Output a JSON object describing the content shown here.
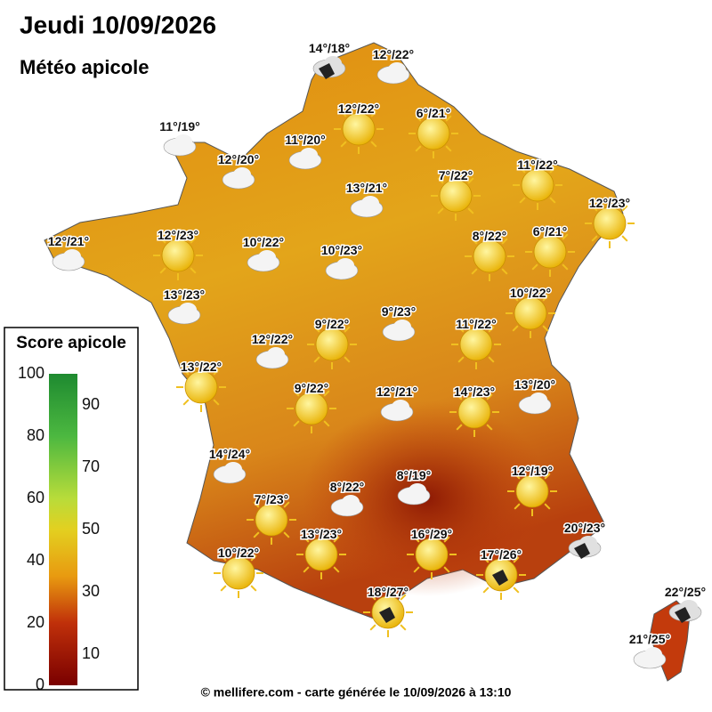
{
  "header": {
    "title": "Jeudi 10/09/2026",
    "subtitle": "Météo apicole"
  },
  "legend": {
    "title": "Score apicole",
    "ticks": [
      100,
      90,
      80,
      70,
      60,
      50,
      40,
      30,
      20,
      10,
      0
    ]
  },
  "stations": [
    "14°/18°",
    "12°/22°",
    "12°/22°",
    "6°/21°",
    "11°/19°",
    "11°/20°",
    "12°/20°",
    "13°/21°",
    "7°/22°",
    "11°/22°",
    "12°/23°",
    "12°/21°",
    "12°/23°",
    "10°/22°",
    "10°/23°",
    "8°/22°",
    "6°/21°",
    "13°/23°",
    "10°/22°",
    "9°/22°",
    "9°/23°",
    "11°/22°",
    "12°/22°",
    "13°/22°",
    "9°/22°",
    "12°/21°",
    "14°/23°",
    "13°/20°",
    "14°/24°",
    "8°/19°",
    "12°/19°",
    "8°/22°",
    "7°/23°",
    "20°/23°",
    "13°/23°",
    "16°/29°",
    "10°/22°",
    "17°/26°",
    "18°/27°",
    "22°/25°",
    "21°/25°"
  ],
  "footer": "© mellifere.com - carte générée le 10/09/2026 à 13:10"
}
